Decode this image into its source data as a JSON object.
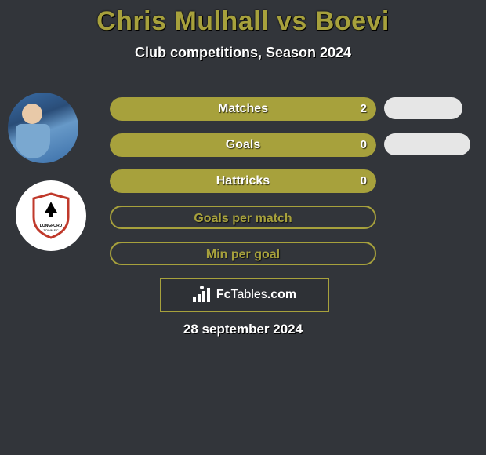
{
  "title_color": "#a7a13c",
  "background_color": "#32353a",
  "title": "Chris Mulhall vs Boevi",
  "subtitle": "Club competitions, Season 2024",
  "date": "28 september 2024",
  "brand": "FcTables.com",
  "pill_color": "#e6e6e6",
  "empty_row_color": "#2b2e33",
  "bar_color": "#a7a13c",
  "stats": [
    {
      "label": "Matches",
      "value": "2",
      "fill_pct": 100,
      "show_pill": true
    },
    {
      "label": "Goals",
      "value": "0",
      "fill_pct": 100,
      "show_pill": true
    },
    {
      "label": "Hattricks",
      "value": "0",
      "fill_pct": 100,
      "show_pill": false
    },
    {
      "label": "Goals per match",
      "value": "",
      "fill_pct": 0,
      "show_pill": false
    },
    {
      "label": "Min per goal",
      "value": "",
      "fill_pct": 0,
      "show_pill": false
    }
  ],
  "crest": {
    "ring_color": "#c0392b",
    "inner_color": "#000000",
    "bg_color": "#ffffff"
  }
}
